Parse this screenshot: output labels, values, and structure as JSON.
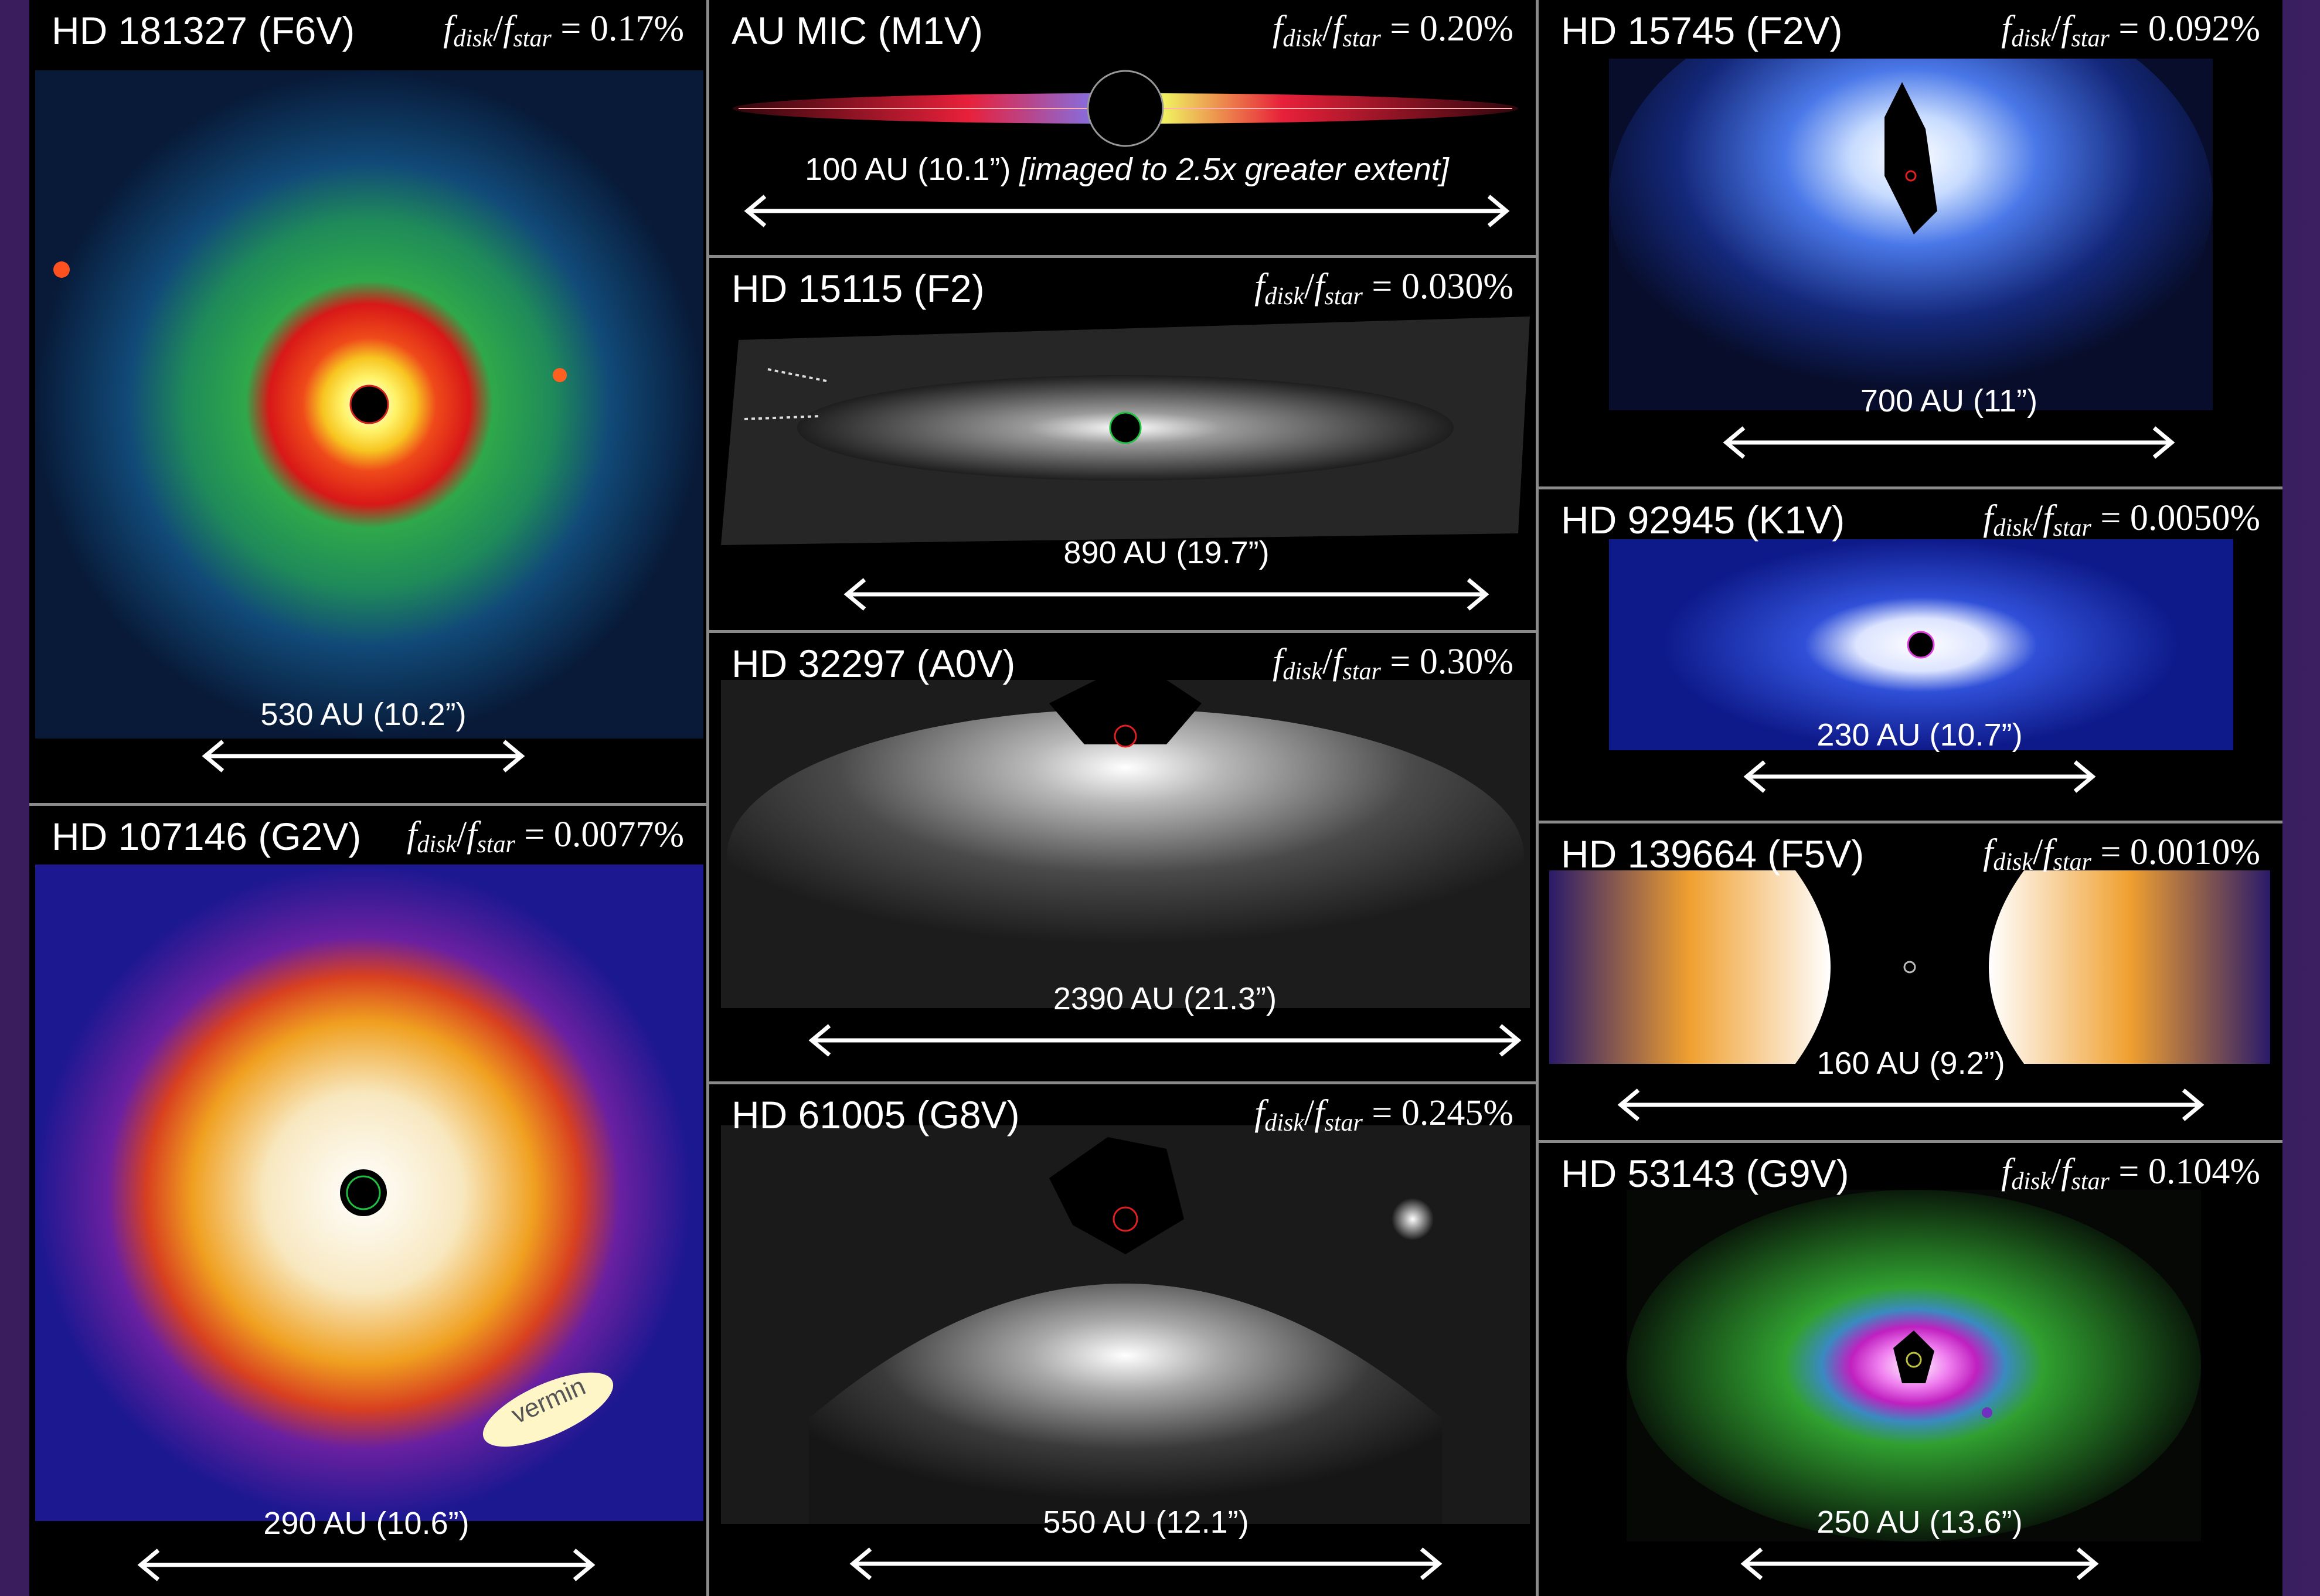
{
  "panels": {
    "hd181327": {
      "name": "HD 181327 (F6V)",
      "ratio_value": "= 0.17%",
      "scale": "530 AU (10.2”)"
    },
    "hd107146": {
      "name": "HD 107146 (G2V)",
      "ratio_value": "= 0.0077%",
      "scale": "290 AU (10.6”)",
      "annotation": "vermin"
    },
    "aumic": {
      "name": "AU MIC (M1V)",
      "ratio_value": "= 0.20%",
      "scale": "100 AU (10.1”)",
      "scale_note": "[imaged to 2.5x greater extent]"
    },
    "hd15115": {
      "name": "HD 15115 (F2)",
      "ratio_value": "= 0.030%",
      "scale": "890 AU (19.7”)"
    },
    "hd32297": {
      "name": "HD 32297 (A0V)",
      "ratio_value": "= 0.30%",
      "scale": "2390 AU (21.3”)"
    },
    "hd61005": {
      "name": "HD 61005 (G8V)",
      "ratio_value": "= 0.245%",
      "scale": "550 AU (12.1”)"
    },
    "hd15745": {
      "name": "HD 15745 (F2V)",
      "ratio_value": "= 0.092%",
      "scale": "700 AU (11”)"
    },
    "hd92945": {
      "name": "HD 92945 (K1V)",
      "ratio_value": "= 0.0050%",
      "scale": "230 AU (10.7”)"
    },
    "hd139664": {
      "name": "HD 139664 (F5V)",
      "ratio_value": "= 0.0010%",
      "scale": "160 AU (9.2”)"
    },
    "hd53143": {
      "name": "HD 53143 (G9V)",
      "ratio_value": "= 0.104%",
      "scale": "250 AU (13.6”)"
    }
  },
  "ratio_symbols": {
    "f": "f",
    "disk": "disk",
    "slash": "/",
    "star": "star"
  },
  "colors": {
    "background": "#2a1648",
    "panel_border": "#8a8a8a",
    "hd181327_ring": "#e8241a",
    "hd181327_halo": "#2fa84a",
    "hd107146_ring": "#f0a020",
    "hd107146_bg": "#2a20a8",
    "aumic_disk": "#e8203a",
    "hd15745_glow": "#a8c8ff",
    "hd92945_glow": "#3050d8",
    "hd139664_lobe": "#f0a030",
    "hd53143_core": "#e030d0",
    "hd53143_halo": "#30a030"
  }
}
